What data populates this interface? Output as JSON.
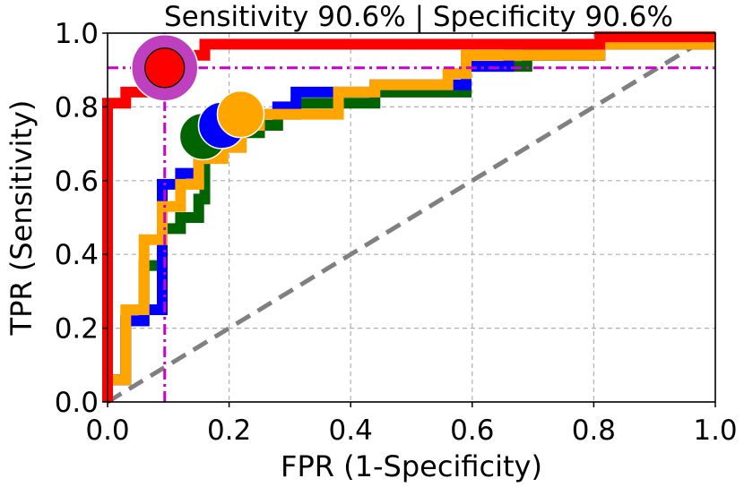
{
  "chart_data": {
    "type": "line",
    "title": "Sensitivity 90.6% | Specificity 90.6%",
    "xlabel": "FPR (1-Specificity)",
    "ylabel": "TPR (Sensitivity)",
    "xlim": [
      0,
      1
    ],
    "ylim": [
      0,
      1
    ],
    "grid": true,
    "xticks": [
      "0.0",
      "0.2",
      "0.4",
      "0.6",
      "0.8",
      "1.0"
    ],
    "yticks": [
      "0.0",
      "0.2",
      "0.4",
      "0.6",
      "0.8",
      "1.0"
    ],
    "colors": {
      "red": "#ff0000",
      "blue": "#0000ff",
      "green": "#006400",
      "orange": "#ffa500",
      "purple": "#bf40bf",
      "magenta": "#cc00cc",
      "diagonal": "#808080",
      "grid": "#b0b0b0"
    },
    "series": [
      {
        "name": "green",
        "color": "#006400",
        "points": [
          [
            0,
            0.06
          ],
          [
            0.03,
            0.06
          ],
          [
            0.03,
            0.22
          ],
          [
            0.06,
            0.22
          ],
          [
            0.06,
            0.37
          ],
          [
            0.09,
            0.37
          ],
          [
            0.09,
            0.47
          ],
          [
            0.12,
            0.47
          ],
          [
            0.12,
            0.5
          ],
          [
            0.15,
            0.5
          ],
          [
            0.15,
            0.55
          ],
          [
            0.16,
            0.55
          ],
          [
            0.16,
            0.72
          ],
          [
            0.19,
            0.72
          ],
          [
            0.19,
            0.73
          ],
          [
            0.25,
            0.73
          ],
          [
            0.25,
            0.75
          ],
          [
            0.28,
            0.75
          ],
          [
            0.28,
            0.78
          ],
          [
            0.31,
            0.78
          ],
          [
            0.31,
            0.81
          ],
          [
            0.44,
            0.81
          ],
          [
            0.44,
            0.84
          ],
          [
            0.59,
            0.84
          ],
          [
            0.59,
            0.91
          ],
          [
            0.69,
            0.91
          ],
          [
            0.69,
            0.94
          ],
          [
            0.81,
            0.94
          ],
          [
            0.81,
            0.97
          ],
          [
            1,
            0.97
          ]
        ]
      },
      {
        "name": "blue",
        "color": "#0000ff",
        "points": [
          [
            0,
            0.06
          ],
          [
            0.03,
            0.06
          ],
          [
            0.03,
            0.22
          ],
          [
            0.06,
            0.22
          ],
          [
            0.06,
            0.25
          ],
          [
            0.09,
            0.25
          ],
          [
            0.09,
            0.59
          ],
          [
            0.12,
            0.59
          ],
          [
            0.12,
            0.62
          ],
          [
            0.15,
            0.62
          ],
          [
            0.15,
            0.69
          ],
          [
            0.19,
            0.69
          ],
          [
            0.19,
            0.72
          ],
          [
            0.22,
            0.72
          ],
          [
            0.22,
            0.75
          ],
          [
            0.25,
            0.75
          ],
          [
            0.25,
            0.78
          ],
          [
            0.28,
            0.78
          ],
          [
            0.28,
            0.8
          ],
          [
            0.31,
            0.8
          ],
          [
            0.31,
            0.84
          ],
          [
            0.44,
            0.84
          ],
          [
            0.44,
            0.86
          ],
          [
            0.59,
            0.86
          ],
          [
            0.59,
            0.91
          ],
          [
            0.66,
            0.91
          ],
          [
            0.66,
            0.94
          ],
          [
            0.81,
            0.94
          ],
          [
            0.81,
            0.97
          ],
          [
            1,
            0.97
          ]
        ]
      },
      {
        "name": "orange",
        "color": "#ffa500",
        "points": [
          [
            0,
            0.06
          ],
          [
            0.03,
            0.06
          ],
          [
            0.03,
            0.25
          ],
          [
            0.06,
            0.25
          ],
          [
            0.06,
            0.44
          ],
          [
            0.09,
            0.44
          ],
          [
            0.09,
            0.53
          ],
          [
            0.12,
            0.53
          ],
          [
            0.12,
            0.59
          ],
          [
            0.15,
            0.59
          ],
          [
            0.15,
            0.66
          ],
          [
            0.19,
            0.66
          ],
          [
            0.19,
            0.69
          ],
          [
            0.22,
            0.69
          ],
          [
            0.22,
            0.75
          ],
          [
            0.25,
            0.75
          ],
          [
            0.25,
            0.78
          ],
          [
            0.38,
            0.78
          ],
          [
            0.38,
            0.84
          ],
          [
            0.44,
            0.84
          ],
          [
            0.44,
            0.86
          ],
          [
            0.56,
            0.86
          ],
          [
            0.56,
            0.89
          ],
          [
            0.59,
            0.89
          ],
          [
            0.59,
            0.94
          ],
          [
            0.81,
            0.94
          ],
          [
            0.81,
            0.97
          ],
          [
            1,
            0.97
          ]
        ]
      },
      {
        "name": "red",
        "color": "#ff0000",
        "points": [
          [
            0,
            0
          ],
          [
            0,
            0.81
          ],
          [
            0.03,
            0.81
          ],
          [
            0.03,
            0.84
          ],
          [
            0.06,
            0.84
          ],
          [
            0.06,
            0.9
          ],
          [
            0.12,
            0.9
          ],
          [
            0.12,
            0.94
          ],
          [
            0.16,
            0.94
          ],
          [
            0.16,
            0.97
          ],
          [
            0.81,
            0.97
          ],
          [
            0.81,
            0.99
          ],
          [
            1,
            0.99
          ]
        ]
      }
    ],
    "operating_points": [
      {
        "name": "green",
        "fpr": 0.157,
        "tpr": 0.72,
        "color": "#006400"
      },
      {
        "name": "blue",
        "fpr": 0.188,
        "tpr": 0.75,
        "color": "#0000ff"
      },
      {
        "name": "orange",
        "fpr": 0.219,
        "tpr": 0.78,
        "color": "#ffa500"
      }
    ],
    "best_point": {
      "fpr": 0.094,
      "tpr": 0.906,
      "outer_color": "#bf40bf",
      "inner_color": "#ff0000"
    }
  }
}
